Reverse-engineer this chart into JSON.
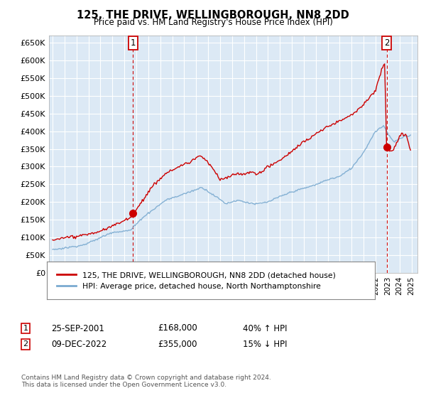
{
  "title": "125, THE DRIVE, WELLINGBOROUGH, NN8 2DD",
  "subtitle": "Price paid vs. HM Land Registry's House Price Index (HPI)",
  "legend_line1": "125, THE DRIVE, WELLINGBOROUGH, NN8 2DD (detached house)",
  "legend_line2": "HPI: Average price, detached house, North Northamptonshire",
  "footnote": "Contains HM Land Registry data © Crown copyright and database right 2024.\nThis data is licensed under the Open Government Licence v3.0.",
  "ann1_label": "1",
  "ann1_date": "25-SEP-2001",
  "ann1_price": "£168,000",
  "ann1_change": "40% ↑ HPI",
  "ann1_year": 2001.73,
  "ann1_value": 168000,
  "ann2_label": "2",
  "ann2_date": "09-DEC-2022",
  "ann2_price": "£355,000",
  "ann2_change": "15% ↓ HPI",
  "ann2_year": 2022.93,
  "ann2_value": 355000,
  "red_color": "#cc0000",
  "blue_color": "#7aaad0",
  "bg_color": "#dce9f5",
  "grid_color": "#ffffff",
  "ylim": [
    0,
    670000
  ],
  "yticks": [
    0,
    50000,
    100000,
    150000,
    200000,
    250000,
    300000,
    350000,
    400000,
    450000,
    500000,
    550000,
    600000,
    650000
  ],
  "ytick_labels": [
    "£0",
    "£50K",
    "£100K",
    "£150K",
    "£200K",
    "£250K",
    "£300K",
    "£350K",
    "£400K",
    "£450K",
    "£500K",
    "£550K",
    "£600K",
    "£650K"
  ],
  "xlim_left": 1994.7,
  "xlim_right": 2025.5
}
